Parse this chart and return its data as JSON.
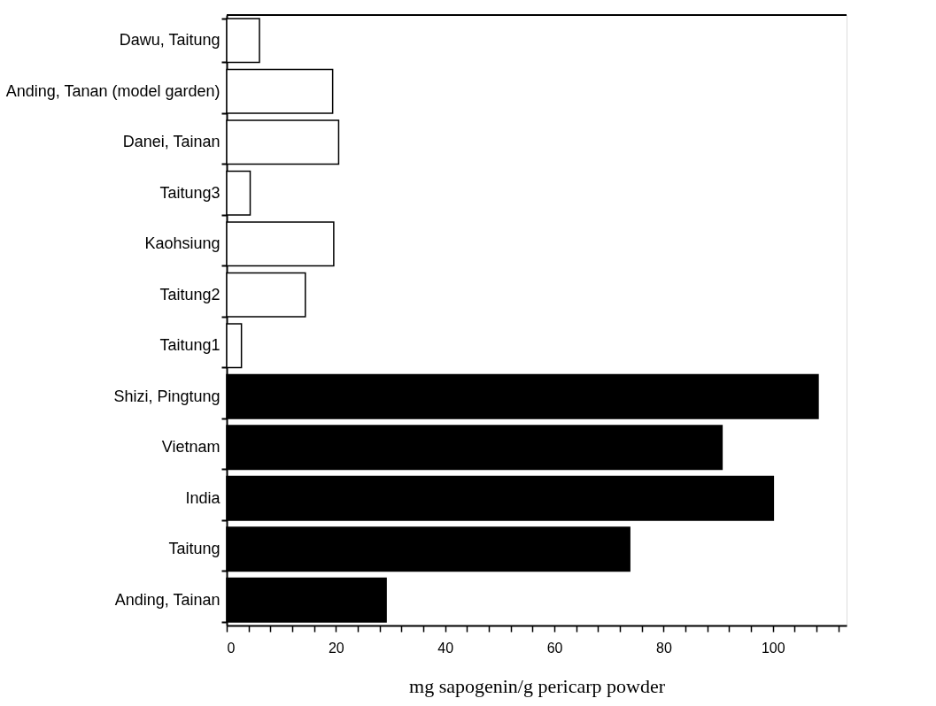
{
  "chart_data": {
    "type": "bar",
    "orientation": "horizontal",
    "xlabel": "mg sapogenin/g pericarp powder",
    "categories": [
      "Dawu, Taitung",
      "Anding, Tanan (model garden)",
      "Danei, Tainan",
      "Taitung3",
      "Kaohsiung",
      "Taitung2",
      "Taitung1",
      "Shizi, Pingtung",
      "Vietnam",
      "India",
      "Taitung",
      "Anding, Tainan"
    ],
    "values": [
      6.0,
      19.4,
      20.5,
      4.3,
      19.6,
      14.4,
      2.7,
      108.3,
      90.7,
      100.1,
      73.8,
      29.2
    ],
    "colors": [
      "#ffffff",
      "#ffffff",
      "#ffffff",
      "#ffffff",
      "#ffffff",
      "#ffffff",
      "#ffffff",
      "#000000",
      "#000000",
      "#000000",
      "#000000",
      "#000000"
    ],
    "xlim": [
      0,
      113.5
    ],
    "xticks": [
      0,
      {
        "value": 4,
        "label": null
      },
      {
        "value": 8,
        "label": null
      },
      {
        "value": 12,
        "label": null
      },
      {
        "value": 16,
        "label": null
      },
      20,
      {
        "value": 24,
        "label": null
      },
      {
        "value": 28,
        "label": null
      },
      {
        "value": 32,
        "label": null
      },
      {
        "value": 36,
        "label": null
      },
      40,
      {
        "value": 44,
        "label": null
      },
      {
        "value": 48,
        "label": null
      },
      {
        "value": 52,
        "label": null
      },
      {
        "value": 56,
        "label": null
      },
      60,
      {
        "value": 64,
        "label": null
      },
      {
        "value": 68,
        "label": null
      },
      {
        "value": 72,
        "label": null
      },
      {
        "value": 76,
        "label": null
      },
      80,
      {
        "value": 84,
        "label": null
      },
      {
        "value": 88,
        "label": null
      },
      {
        "value": 92,
        "label": null
      },
      {
        "value": 96,
        "label": null
      },
      100,
      {
        "value": 104,
        "label": null
      },
      {
        "value": 108,
        "label": null
      },
      {
        "value": 112,
        "label": null
      }
    ],
    "grid": false
  }
}
